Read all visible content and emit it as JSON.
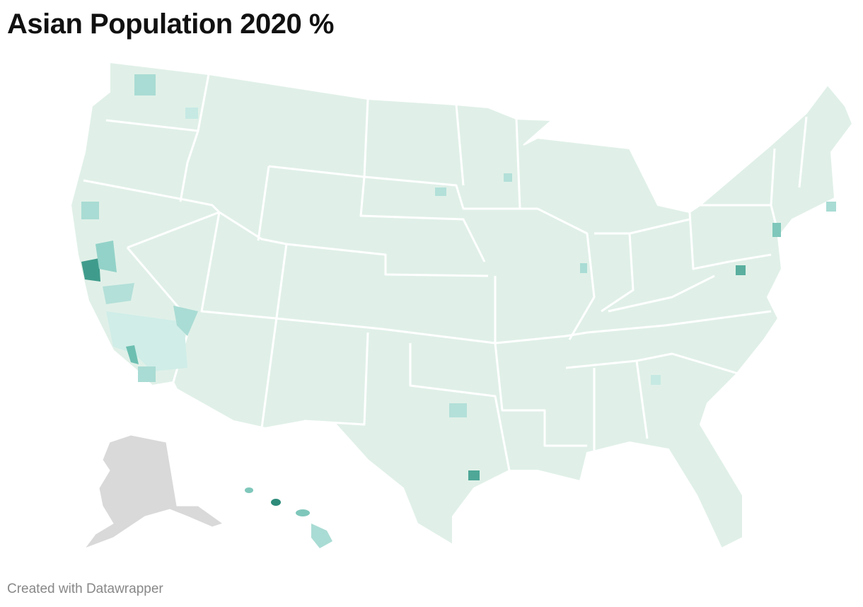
{
  "title": "Asian Population 2020 %",
  "footer": "Created with Datawrapper"
}
